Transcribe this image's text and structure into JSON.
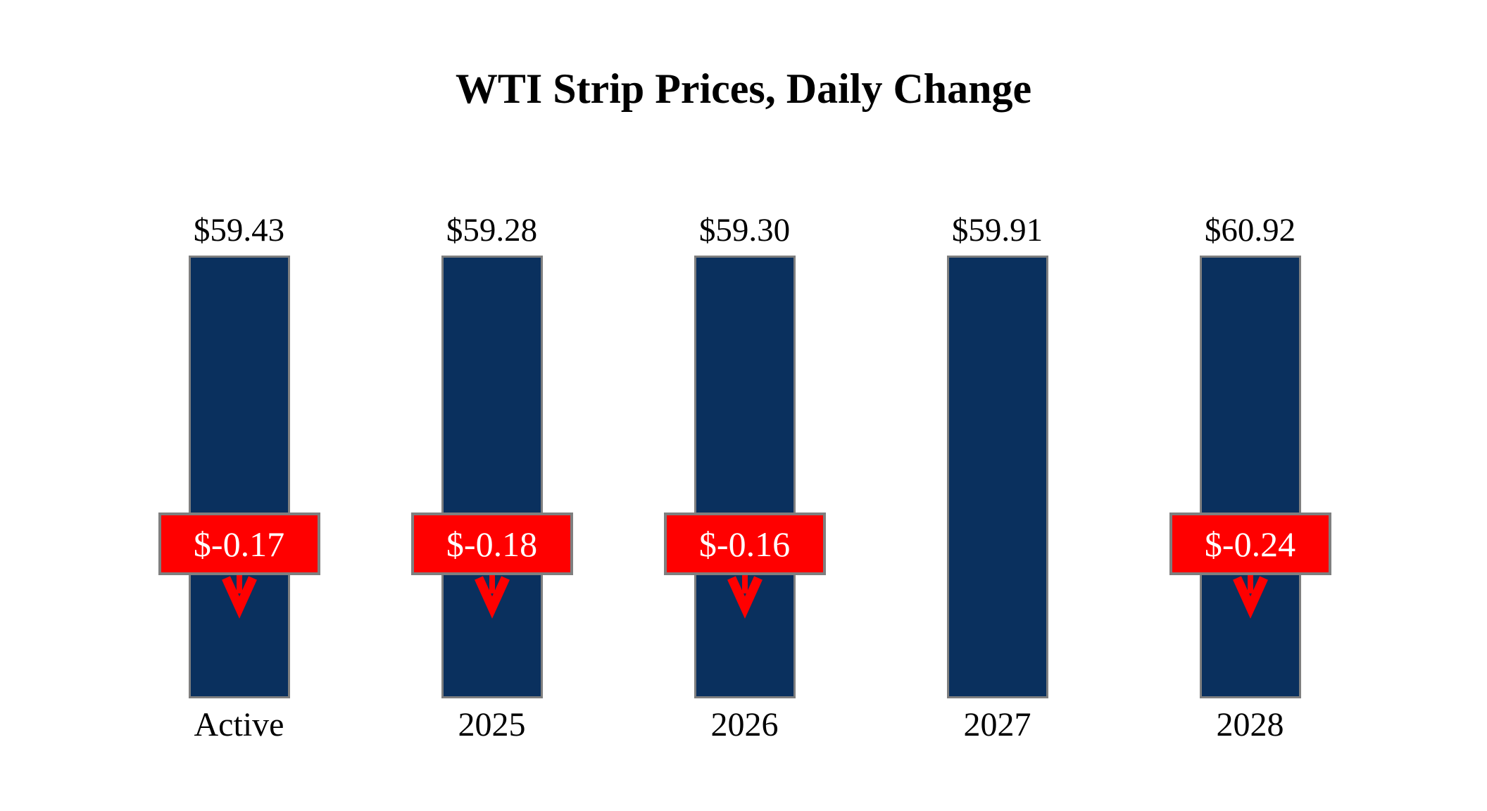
{
  "title": "WTI Strip Prices, Daily Change",
  "colors": {
    "background": "#FFFFFF",
    "bar": "#0A305E",
    "bar_border": "#7F7F7F",
    "flag": "#FF0000",
    "flag_border": "#7F7F7F",
    "flag_text": "#FFFFFF",
    "arrow": "#FF0000",
    "text": "#000000"
  },
  "chart_data": {
    "type": "bar",
    "title": "WTI Strip Prices, Daily Change",
    "xlabel": "",
    "ylabel": "",
    "categories": [
      "Active",
      "2025",
      "2026",
      "2027",
      "2028"
    ],
    "values": [
      59.43,
      59.28,
      59.3,
      59.91,
      60.92
    ],
    "value_labels": [
      "$59.43",
      "$59.28",
      "$59.30",
      "$59.91",
      "$60.92"
    ],
    "changes": [
      -0.17,
      -0.18,
      -0.16,
      null,
      -0.24
    ],
    "change_labels": [
      "$-0.17",
      "$-0.18",
      "$-0.16",
      null,
      "$-0.24"
    ],
    "ylim": [
      0,
      61
    ],
    "grid": false,
    "legend": false,
    "axes_shown": false
  }
}
